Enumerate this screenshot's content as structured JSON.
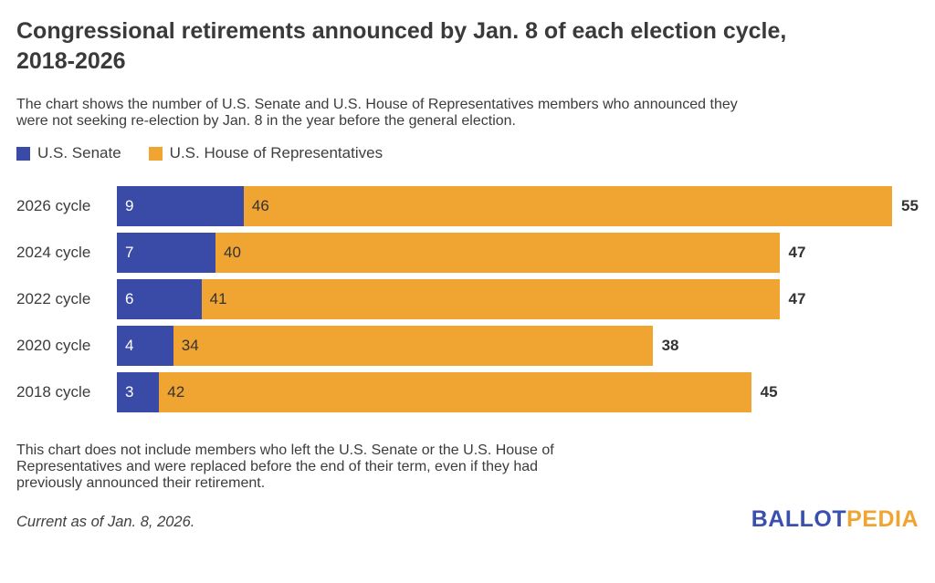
{
  "title": {
    "line1": "Congressional retirements announced by Jan. 8 of each election cycle,",
    "line2": "2018-2026"
  },
  "subtitle": {
    "line1": "The chart shows the number of U.S. Senate and U.S. House of Representatives members who announced they",
    "line2": "were not seeking re-election by Jan. 8 in the year before the general election."
  },
  "legend": {
    "senate_label": "U.S. Senate",
    "house_label": "U.S. House of Representatives"
  },
  "colors": {
    "senate_blue": "#3a4aa7",
    "house_orange": "#f0a432",
    "logo_blue": "#3a4fae",
    "logo_orange": "#f0a432"
  },
  "chart_data": {
    "type": "bar",
    "orientation": "horizontal",
    "stacked": true,
    "title": "Congressional retirements announced by Jan. 8 of each election cycle, 2018-2026",
    "categories": [
      "2026 cycle",
      "2024 cycle",
      "2022 cycle",
      "2020 cycle",
      "2018 cycle"
    ],
    "series": [
      {
        "name": "U.S. Senate",
        "color": "#3a4aa7",
        "values": [
          9,
          7,
          6,
          4,
          3
        ]
      },
      {
        "name": "U.S. House of Representatives",
        "color": "#f0a432",
        "values": [
          46,
          40,
          41,
          34,
          42
        ]
      }
    ],
    "totals": [
      55,
      47,
      47,
      38,
      45
    ],
    "xlim": [
      0,
      55
    ],
    "grid": false,
    "legend_position": "top"
  },
  "footnote": {
    "line1": "This chart does not include members who left the U.S. Senate or the U.S. House of",
    "line2": "Representatives and were replaced before the end of their term, even if they had",
    "line3": "previously announced their retirement."
  },
  "footer": {
    "current_as_of": "Current as of Jan. 8, 2026.",
    "logo_part1": "BALLOT",
    "logo_part2": "PEDIA"
  }
}
